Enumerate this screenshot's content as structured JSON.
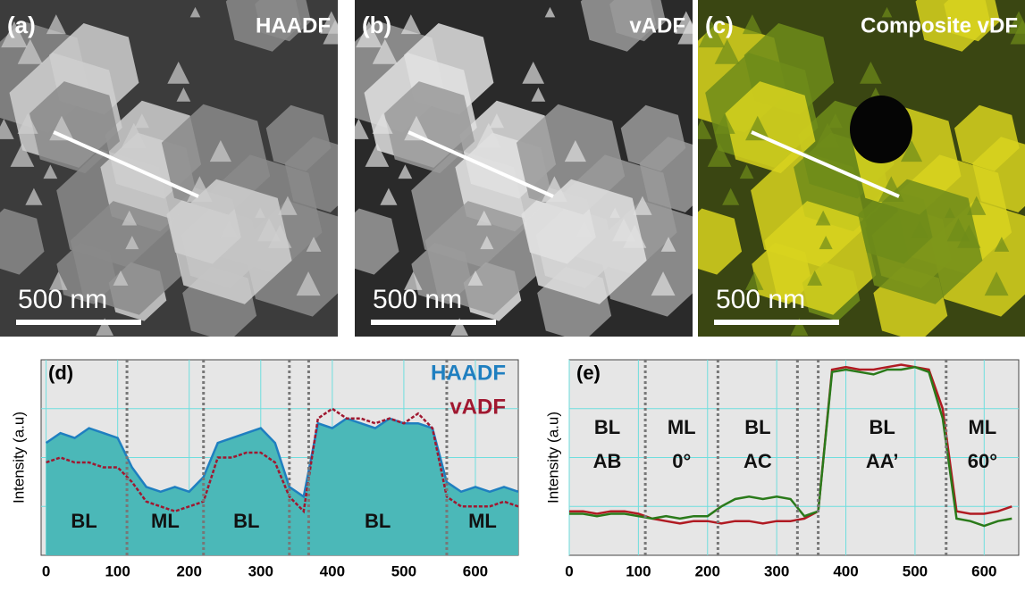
{
  "panels": [
    {
      "label": "(a)",
      "title": "HAADF",
      "scale": "500 nm"
    },
    {
      "label": "(b)",
      "title": "vADF",
      "scale": "500 nm"
    },
    {
      "label": "(c)",
      "title": "Composite vDF",
      "scale": "500 nm"
    }
  ],
  "chart_data": [
    {
      "type": "area-line",
      "title": "(d)",
      "y_label": "Intensity (a.u)",
      "x": [
        0,
        20,
        40,
        60,
        80,
        100,
        120,
        140,
        160,
        180,
        200,
        220,
        240,
        260,
        280,
        300,
        320,
        340,
        360,
        380,
        400,
        420,
        440,
        460,
        480,
        500,
        520,
        540,
        560,
        580,
        600,
        620,
        640,
        660
      ],
      "series": [
        {
          "name": "HAADF",
          "color": "#1f7fc0",
          "fill": "#4bb8b8",
          "style": "area",
          "values": [
            2.3,
            2.5,
            2.4,
            2.6,
            2.5,
            2.4,
            1.8,
            1.4,
            1.3,
            1.4,
            1.3,
            1.6,
            2.3,
            2.4,
            2.5,
            2.6,
            2.3,
            1.4,
            1.2,
            2.7,
            2.6,
            2.8,
            2.7,
            2.6,
            2.8,
            2.7,
            2.7,
            2.6,
            1.5,
            1.3,
            1.4,
            1.3,
            1.4,
            1.3
          ]
        },
        {
          "name": "vADF",
          "color": "#a01830",
          "style": "dashed",
          "values": [
            1.9,
            2.0,
            1.9,
            1.9,
            1.8,
            1.8,
            1.5,
            1.1,
            1.0,
            0.9,
            1.0,
            1.1,
            2.0,
            2.0,
            2.1,
            2.1,
            1.9,
            1.2,
            0.9,
            2.8,
            3.0,
            2.8,
            2.8,
            2.7,
            2.8,
            2.7,
            2.9,
            2.6,
            1.2,
            1.0,
            1.0,
            1.0,
            1.1,
            1.0
          ]
        }
      ],
      "dividers": [
        113,
        220,
        340,
        367,
        560
      ],
      "regions": [
        [
          "BL"
        ],
        [
          "ML"
        ],
        [
          "BL"
        ],
        null,
        [
          "BL"
        ],
        [
          "ML"
        ]
      ],
      "xlim": [
        -7,
        660
      ],
      "xticks": [
        0,
        100,
        200,
        300,
        400,
        500,
        600
      ],
      "ylim": [
        0,
        4
      ],
      "yticks": [
        1,
        2,
        3
      ],
      "grid": true,
      "legend": "top-right"
    },
    {
      "type": "line",
      "title": "(e)",
      "y_label": "Intensity (a.u)",
      "x": [
        0,
        20,
        40,
        60,
        80,
        100,
        120,
        140,
        160,
        180,
        200,
        220,
        240,
        260,
        280,
        300,
        320,
        340,
        360,
        380,
        400,
        420,
        440,
        460,
        480,
        500,
        520,
        540,
        560,
        580,
        600,
        620,
        640
      ],
      "series": [
        {
          "color": "#b01a22",
          "values": [
            0.9,
            0.9,
            0.85,
            0.9,
            0.9,
            0.85,
            0.75,
            0.7,
            0.65,
            0.7,
            0.7,
            0.65,
            0.7,
            0.7,
            0.65,
            0.7,
            0.7,
            0.75,
            0.9,
            3.8,
            3.85,
            3.8,
            3.8,
            3.85,
            3.9,
            3.85,
            3.8,
            3.0,
            0.9,
            0.85,
            0.85,
            0.9,
            1.0
          ]
        },
        {
          "color": "#2a7a1a",
          "values": [
            0.85,
            0.85,
            0.8,
            0.85,
            0.85,
            0.8,
            0.75,
            0.8,
            0.75,
            0.8,
            0.8,
            1.0,
            1.15,
            1.2,
            1.15,
            1.2,
            1.15,
            0.8,
            0.9,
            3.75,
            3.8,
            3.75,
            3.7,
            3.8,
            3.8,
            3.85,
            3.75,
            2.8,
            0.75,
            0.7,
            0.6,
            0.7,
            0.75
          ]
        }
      ],
      "dividers": [
        110,
        215,
        330,
        360,
        545
      ],
      "regions": [
        [
          "BL",
          "AB"
        ],
        [
          "ML",
          "0°"
        ],
        [
          "BL",
          "AC"
        ],
        null,
        [
          "BL",
          "AA’"
        ],
        [
          "ML",
          "60°"
        ]
      ],
      "xlim": [
        0,
        650
      ],
      "xticks": [
        0,
        100,
        200,
        300,
        400,
        500,
        600
      ],
      "ylim": [
        0,
        4
      ],
      "yticks": [
        1,
        2,
        3
      ],
      "grid": true
    }
  ]
}
